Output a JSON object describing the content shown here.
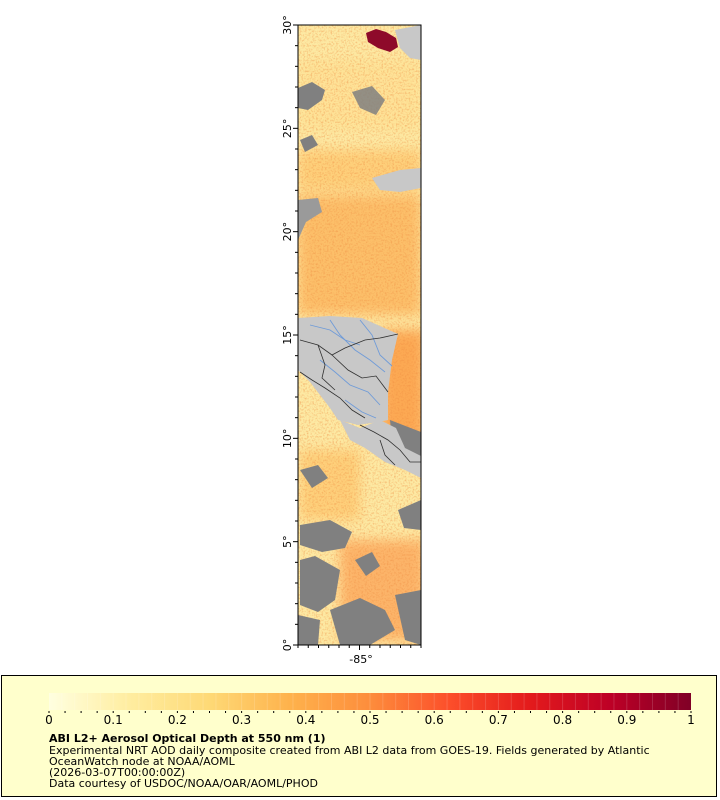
{
  "map": {
    "lat_ticks": [
      {
        "value": 0,
        "label": "0°"
      },
      {
        "value": 5,
        "label": "5°"
      },
      {
        "value": 10,
        "label": "10°"
      },
      {
        "value": 15,
        "label": "15°"
      },
      {
        "value": 20,
        "label": "20°"
      },
      {
        "value": 25,
        "label": "25°"
      },
      {
        "value": 30,
        "label": "30°"
      }
    ],
    "lon_ticks": [
      {
        "value": -85,
        "label": "-85°"
      }
    ],
    "lat_range": [
      0,
      30
    ],
    "colors": {
      "no_data_land": "#c8c8c8",
      "masked": "#808080",
      "borders": "#303030",
      "rivers": "#6f9bd8"
    }
  },
  "legend": {
    "ticks": [
      "0",
      "0.1",
      "0.2",
      "0.3",
      "0.4",
      "0.5",
      "0.6",
      "0.7",
      "0.8",
      "0.9",
      "1"
    ],
    "range": [
      0,
      1
    ],
    "colors": [
      "#ffffe0",
      "#ffeda0",
      "#fed976",
      "#feb24c",
      "#fd8d3c",
      "#fc4e2a",
      "#e31a1c",
      "#bd0026",
      "#800026"
    ],
    "title": "ABI L2+ Aerosol Optical Depth at 550 nm (1)",
    "lines": [
      "Experimental NRT AOD daily composite created from ABI L2 data from GOES-19. Fields generated by Atlantic",
      "OceanWatch node at NOAA/AOML",
      "(2026-03-07T00:00:00Z)",
      "Data courtesy of USDOC/NOAA/OAR/AOML/PHOD"
    ]
  }
}
